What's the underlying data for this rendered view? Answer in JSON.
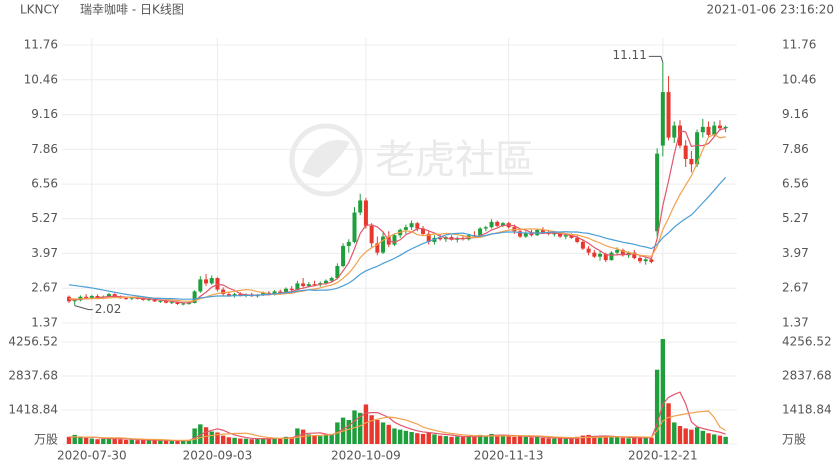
{
  "header": {
    "symbol": "LKNCY",
    "name": "瑞幸咖啡 - 日K线图",
    "timestamp": "2021-01-06 23:16:20",
    "watermark": "老虎社區"
  },
  "chart_data": {
    "type": "candlestick",
    "up_color": "#1f9e3c",
    "down_color": "#e8372c",
    "categories": [
      null,
      null,
      null,
      null,
      "2020-07-30",
      null,
      null,
      null,
      null,
      null,
      null,
      null,
      null,
      null,
      null,
      null,
      null,
      null,
      null,
      null,
      null,
      null,
      null,
      null,
      null,
      null,
      "2020-09-03",
      null,
      null,
      null,
      null,
      null,
      null,
      null,
      null,
      null,
      null,
      null,
      null,
      null,
      null,
      null,
      null,
      null,
      null,
      null,
      null,
      null,
      null,
      null,
      null,
      null,
      "2020-10-09",
      null,
      null,
      null,
      null,
      null,
      null,
      null,
      null,
      null,
      null,
      null,
      null,
      null,
      null,
      null,
      null,
      null,
      null,
      null,
      null,
      null,
      null,
      null,
      null,
      "2020-11-13",
      null,
      null,
      null,
      null,
      null,
      null,
      null,
      null,
      null,
      null,
      null,
      null,
      null,
      null,
      null,
      null,
      null,
      null,
      null,
      null,
      null,
      null,
      null,
      null,
      null,
      null,
      "2020-12-21",
      null,
      null,
      null,
      null,
      null,
      null,
      null,
      null,
      null,
      null,
      null
    ],
    "open": [
      2.35,
      2.18,
      2.22,
      2.35,
      2.3,
      2.38,
      2.32,
      2.36,
      2.45,
      2.33,
      2.3,
      2.28,
      2.32,
      2.27,
      2.24,
      2.26,
      2.18,
      2.2,
      2.13,
      2.15,
      2.08,
      2.1,
      2.12,
      2.55,
      3.0,
      2.85,
      3.05,
      2.62,
      2.45,
      2.4,
      2.45,
      2.38,
      2.44,
      2.37,
      2.42,
      2.5,
      2.43,
      2.55,
      2.48,
      2.65,
      2.6,
      2.85,
      2.75,
      2.82,
      2.8,
      2.86,
      2.95,
      3.05,
      3.5,
      4.25,
      4.4,
      5.5,
      5.95,
      5.0,
      4.35,
      4.0,
      4.6,
      4.3,
      4.65,
      4.85,
      4.95,
      5.1,
      4.9,
      4.7,
      4.4,
      4.55,
      4.5,
      4.58,
      4.48,
      4.55,
      4.5,
      4.65,
      4.6,
      4.9,
      4.95,
      5.15,
      5.0,
      5.1,
      4.95,
      4.8,
      4.6,
      4.75,
      4.65,
      4.85,
      4.75,
      4.7,
      4.72,
      4.6,
      4.65,
      4.55,
      4.4,
      4.15,
      4.0,
      3.85,
      3.95,
      3.72,
      4.0,
      4.1,
      3.9,
      4.0,
      3.8,
      3.68,
      3.75,
      4.8,
      8.0,
      10.0,
      8.3,
      8.75,
      8.0,
      7.5,
      7.3,
      8.5,
      8.7,
      8.4,
      8.75,
      8.65
    ],
    "high": [
      2.4,
      2.28,
      2.4,
      2.45,
      2.42,
      2.44,
      2.4,
      2.5,
      2.48,
      2.4,
      2.36,
      2.35,
      2.38,
      2.33,
      2.3,
      2.3,
      2.25,
      2.24,
      2.2,
      2.18,
      2.14,
      2.16,
      2.6,
      3.12,
      3.2,
      3.15,
      3.08,
      2.7,
      2.55,
      2.5,
      2.52,
      2.48,
      2.5,
      2.45,
      2.55,
      2.56,
      2.6,
      2.62,
      2.7,
      2.75,
      2.95,
      3.05,
      2.9,
      2.95,
      2.92,
      3.0,
      3.1,
      3.6,
      4.35,
      4.5,
      5.7,
      6.2,
      6.05,
      5.1,
      4.6,
      4.75,
      4.8,
      4.7,
      4.9,
      5.05,
      5.2,
      5.15,
      5.0,
      4.8,
      4.65,
      4.7,
      4.62,
      4.65,
      4.6,
      4.65,
      4.7,
      4.8,
      4.95,
      5.0,
      5.25,
      5.2,
      5.15,
      5.15,
      5.05,
      4.9,
      4.8,
      4.85,
      4.9,
      4.95,
      4.85,
      4.8,
      4.78,
      4.7,
      4.72,
      4.65,
      4.5,
      4.25,
      4.1,
      4.05,
      4.0,
      4.05,
      4.2,
      4.15,
      4.05,
      4.1,
      3.9,
      3.8,
      3.8,
      7.9,
      11.11,
      10.6,
      8.9,
      8.95,
      8.2,
      7.8,
      8.6,
      9.0,
      8.9,
      8.9,
      8.95,
      8.75
    ],
    "low": [
      2.12,
      2.02,
      2.18,
      2.28,
      2.25,
      2.3,
      2.26,
      2.33,
      2.3,
      2.28,
      2.24,
      2.22,
      2.25,
      2.2,
      2.18,
      2.15,
      2.12,
      2.1,
      2.08,
      2.05,
      2.03,
      2.05,
      2.1,
      2.5,
      2.75,
      2.8,
      2.55,
      2.4,
      2.35,
      2.32,
      2.36,
      2.33,
      2.35,
      2.32,
      2.38,
      2.4,
      2.4,
      2.45,
      2.45,
      2.55,
      2.58,
      2.7,
      2.7,
      2.75,
      2.72,
      2.8,
      2.88,
      3.0,
      3.45,
      4.0,
      4.35,
      5.4,
      4.9,
      4.2,
      3.9,
      3.95,
      4.2,
      4.25,
      4.55,
      4.7,
      4.85,
      4.8,
      4.65,
      4.3,
      4.3,
      4.45,
      4.4,
      4.45,
      4.38,
      4.45,
      4.45,
      4.55,
      4.58,
      4.8,
      4.9,
      4.95,
      4.95,
      4.9,
      4.7,
      4.55,
      4.55,
      4.6,
      4.62,
      4.7,
      4.65,
      4.6,
      4.55,
      4.5,
      4.52,
      4.35,
      4.1,
      3.9,
      3.8,
      3.7,
      3.65,
      3.7,
      3.9,
      3.85,
      3.8,
      3.75,
      3.6,
      3.55,
      3.6,
      4.6,
      7.6,
      8.2,
      8.1,
      7.9,
      7.2,
      7.0,
      7.2,
      8.3,
      8.3,
      8.35,
      8.55,
      8.5
    ],
    "close": [
      2.18,
      2.22,
      2.35,
      2.3,
      2.38,
      2.32,
      2.36,
      2.45,
      2.33,
      2.3,
      2.28,
      2.32,
      2.27,
      2.24,
      2.26,
      2.18,
      2.2,
      2.13,
      2.15,
      2.08,
      2.1,
      2.12,
      2.55,
      3.0,
      2.85,
      3.05,
      2.62,
      2.45,
      2.4,
      2.45,
      2.38,
      2.44,
      2.37,
      2.42,
      2.5,
      2.43,
      2.55,
      2.48,
      2.65,
      2.6,
      2.85,
      2.75,
      2.82,
      2.8,
      2.86,
      2.95,
      3.05,
      3.5,
      4.25,
      4.4,
      5.5,
      5.95,
      5.0,
      4.35,
      4.0,
      4.6,
      4.3,
      4.65,
      4.85,
      4.95,
      5.1,
      4.9,
      4.7,
      4.4,
      4.55,
      4.5,
      4.58,
      4.48,
      4.55,
      4.5,
      4.65,
      4.6,
      4.9,
      4.95,
      5.15,
      5.0,
      5.1,
      4.95,
      4.8,
      4.6,
      4.75,
      4.65,
      4.85,
      4.75,
      4.7,
      4.72,
      4.6,
      4.65,
      4.55,
      4.4,
      4.15,
      4.0,
      3.85,
      3.95,
      3.72,
      4.0,
      4.1,
      3.9,
      4.0,
      3.8,
      3.68,
      3.75,
      3.65,
      7.7,
      10.0,
      8.3,
      8.75,
      8.0,
      7.5,
      7.3,
      8.5,
      8.7,
      8.4,
      8.75,
      8.65,
      8.7
    ],
    "ylim": [
      1.37,
      11.76
    ],
    "yticks": [
      1.37,
      2.67,
      3.97,
      5.27,
      6.56,
      7.86,
      9.16,
      10.46,
      11.76
    ],
    "grid": true,
    "ma": [
      {
        "color": "#e2566a",
        "values": [
          2.25,
          2.24,
          2.26,
          2.27,
          2.29,
          2.31,
          2.34,
          2.36,
          2.37,
          2.35,
          2.34,
          2.34,
          2.3,
          2.28,
          2.27,
          2.25,
          2.23,
          2.2,
          2.18,
          2.15,
          2.13,
          2.12,
          2.2,
          2.37,
          2.52,
          2.71,
          2.81,
          2.79,
          2.67,
          2.59,
          2.46,
          2.42,
          2.41,
          2.41,
          2.42,
          2.43,
          2.45,
          2.48,
          2.52,
          2.54,
          2.63,
          2.67,
          2.73,
          2.76,
          2.82,
          2.84,
          2.9,
          3.03,
          3.32,
          3.63,
          4.14,
          4.72,
          5.02,
          5.04,
          4.96,
          4.78,
          4.45,
          4.38,
          4.48,
          4.67,
          4.77,
          4.89,
          4.9,
          4.81,
          4.73,
          4.61,
          4.55,
          4.5,
          4.53,
          4.52,
          4.55,
          4.56,
          4.64,
          4.72,
          4.85,
          4.92,
          5.02,
          5.03,
          5.0,
          4.89,
          4.84,
          4.75,
          4.73,
          4.72,
          4.74,
          4.73,
          4.72,
          4.68,
          4.64,
          4.58,
          4.47,
          4.35,
          4.19,
          4.07,
          3.93,
          3.9,
          3.92,
          3.93,
          3.94,
          3.96,
          3.9,
          3.83,
          3.78,
          4.52,
          5.76,
          6.68,
          7.68,
          8.55,
          8.51,
          7.97,
          8.01,
          8.0,
          8.08,
          8.33,
          8.6,
          8.64
        ]
      },
      {
        "color": "#f2a14a",
        "values": [
          2.28,
          2.27,
          2.27,
          2.28,
          2.29,
          2.28,
          2.29,
          2.31,
          2.32,
          2.32,
          2.33,
          2.34,
          2.33,
          2.33,
          2.31,
          2.3,
          2.29,
          2.25,
          2.23,
          2.21,
          2.19,
          2.18,
          2.2,
          2.28,
          2.34,
          2.42,
          2.47,
          2.5,
          2.52,
          2.56,
          2.59,
          2.62,
          2.6,
          2.54,
          2.51,
          2.45,
          2.44,
          2.45,
          2.47,
          2.48,
          2.53,
          2.56,
          2.61,
          2.64,
          2.68,
          2.74,
          2.79,
          2.88,
          3.04,
          3.23,
          3.49,
          3.81,
          4.03,
          4.18,
          4.3,
          4.46,
          4.59,
          4.7,
          4.76,
          4.82,
          4.78,
          4.67,
          4.64,
          4.65,
          4.7,
          4.69,
          4.72,
          4.7,
          4.67,
          4.63,
          4.58,
          4.56,
          4.57,
          4.63,
          4.69,
          4.74,
          4.79,
          4.84,
          4.86,
          4.87,
          4.88,
          4.89,
          4.88,
          4.86,
          4.82,
          4.79,
          4.74,
          4.71,
          4.68,
          4.66,
          4.6,
          4.54,
          4.44,
          4.36,
          4.26,
          4.19,
          4.14,
          4.06,
          4.01,
          3.95,
          3.9,
          3.88,
          3.86,
          4.23,
          4.86,
          5.29,
          5.76,
          6.17,
          6.52,
          6.87,
          7.35,
          7.84,
          8.32,
          8.42,
          8.29,
          8.33
        ]
      },
      {
        "color": "#4a9fd8",
        "values": [
          2.8,
          2.77,
          2.74,
          2.71,
          2.68,
          2.64,
          2.6,
          2.56,
          2.52,
          2.48,
          2.44,
          2.41,
          2.38,
          2.35,
          2.32,
          2.29,
          2.29,
          2.28,
          2.28,
          2.27,
          2.26,
          2.26,
          2.27,
          2.31,
          2.33,
          2.36,
          2.38,
          2.38,
          2.38,
          2.39,
          2.39,
          2.4,
          2.4,
          2.41,
          2.43,
          2.44,
          2.46,
          2.48,
          2.5,
          2.52,
          2.56,
          2.59,
          2.61,
          2.59,
          2.6,
          2.6,
          2.62,
          2.67,
          2.76,
          2.86,
          3.01,
          3.19,
          3.32,
          3.41,
          3.49,
          3.6,
          3.69,
          3.79,
          3.9,
          4.03,
          4.14,
          4.24,
          4.34,
          4.42,
          4.5,
          4.58,
          4.66,
          4.7,
          4.72,
          4.73,
          4.68,
          4.62,
          4.61,
          4.64,
          4.7,
          4.72,
          4.76,
          4.77,
          4.77,
          4.75,
          4.73,
          4.73,
          4.73,
          4.75,
          4.76,
          4.77,
          4.77,
          4.78,
          4.77,
          4.77,
          4.74,
          4.72,
          4.66,
          4.61,
          4.54,
          4.49,
          4.44,
          4.39,
          4.35,
          4.31,
          4.25,
          4.21,
          4.15,
          4.3,
          4.56,
          4.74,
          4.95,
          5.12,
          5.27,
          5.41,
          5.63,
          5.86,
          6.09,
          6.33,
          6.58,
          6.81
        ]
      }
    ],
    "volume": {
      "values": [
        300,
        380,
        280,
        250,
        230,
        200,
        210,
        260,
        240,
        190,
        170,
        180,
        160,
        170,
        150,
        160,
        140,
        150,
        130,
        140,
        150,
        160,
        650,
        820,
        700,
        520,
        480,
        350,
        280,
        260,
        230,
        220,
        200,
        210,
        240,
        220,
        260,
        230,
        300,
        280,
        650,
        600,
        400,
        350,
        330,
        380,
        420,
        900,
        1100,
        1000,
        1400,
        1300,
        1650,
        1200,
        1000,
        900,
        800,
        650,
        600,
        550,
        500,
        450,
        420,
        480,
        400,
        350,
        330,
        300,
        310,
        290,
        320,
        300,
        380,
        350,
        420,
        380,
        340,
        320,
        300,
        350,
        300,
        280,
        300,
        260,
        240,
        230,
        250,
        220,
        230,
        300,
        350,
        380,
        330,
        300,
        320,
        280,
        300,
        260,
        240,
        250,
        280,
        300,
        260,
        3100,
        4380,
        1700,
        900,
        750,
        650,
        600,
        700,
        550,
        450,
        400,
        350,
        300
      ],
      "ylim": [
        0,
        4256.52
      ],
      "yticks": [
        {
          "value": 0,
          "label": "万股"
        },
        1418.84,
        2837.68,
        4256.52
      ],
      "ma": [
        {
          "color": "#e2566a",
          "values": [
            290,
            290,
            285,
            280,
            288,
            268,
            234,
            230,
            228,
            220,
            214,
            208,
            188,
            174,
            166,
            164,
            156,
            154,
            146,
            144,
            142,
            146,
            246,
            384,
            496,
            570,
            634,
            574,
            466,
            378,
            320,
            268,
            238,
            224,
            220,
            218,
            226,
            232,
            250,
            258,
            344,
            412,
            446,
            456,
            466,
            412,
            376,
            476,
            626,
            760,
            964,
            1140,
            1290,
            1310,
            1310,
            1210,
            1110,
            910,
            790,
            700,
            620,
            550,
            504,
            480,
            450,
            420,
            396,
            372,
            338,
            316,
            310,
            304,
            320,
            328,
            354,
            366,
            374,
            362,
            352,
            338,
            322,
            310,
            306,
            298,
            276,
            262,
            256,
            240,
            234,
            246,
            270,
            296,
            318,
            332,
            336,
            322,
            306,
            292,
            280,
            266,
            266,
            266,
            266,
            838,
            1664,
            1948,
            2068,
            2166,
            1676,
            920,
            720,
            650,
            590,
            540,
            490,
            410
          ]
        },
        {
          "color": "#f2a14a",
          "values": [
            300,
            300,
            295,
            290,
            290,
            279,
            262,
            258,
            254,
            254,
            241,
            221,
            209,
            201,
            193,
            189,
            182,
            171,
            160,
            155,
            153,
            151,
            200,
            265,
            320,
            356,
            390,
            410,
            425,
            437,
            445,
            451,
            406,
            345,
            299,
            269,
            247,
            235,
            237,
            239,
            281,
            319,
            339,
            353,
            362,
            378,
            394,
            461,
            541,
            613,
            688,
            758,
            883,
            968,
            1035,
            1087,
            1125,
            1100,
            1050,
            1005,
            915,
            830,
            707,
            635,
            575,
            520,
            473,
            438,
            409,
            383,
            365,
            350,
            346,
            333,
            335,
            338,
            339,
            341,
            340,
            346,
            344,
            342,
            334,
            325,
            307,
            292,
            283,
            273,
            266,
            261,
            266,
            276,
            279,
            283,
            291,
            296,
            301,
            305,
            306,
            301,
            294,
            286,
            279,
            559,
            965,
            1107,
            1167,
            1216,
            1257,
            1292,
            1334,
            1359,
            1378,
            1108,
            705,
            565
          ]
        }
      ]
    }
  }
}
